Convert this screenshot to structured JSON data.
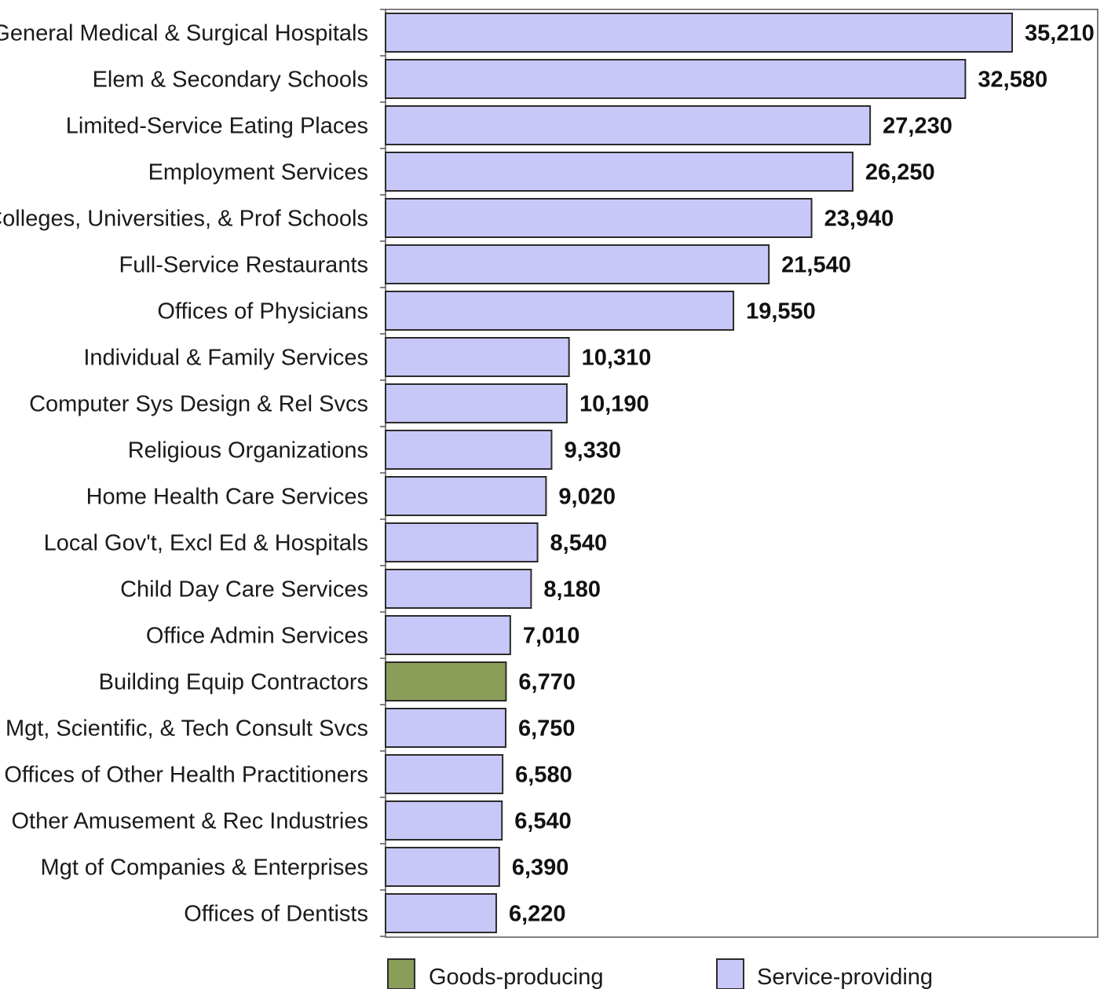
{
  "chart_data": {
    "type": "bar",
    "orientation": "horizontal",
    "categories": [
      "General Medical & Surgical Hospitals",
      "Elem & Secondary Schools",
      "Limited-Service Eating Places",
      "Employment Services",
      "Colleges, Universities, & Prof Schools",
      "Full-Service Restaurants",
      "Offices of Physicians",
      "Individual & Family Services",
      "Computer Sys Design & Rel Svcs",
      "Religious Organizations",
      "Home Health Care Services",
      "Local Gov't, Excl Ed & Hospitals",
      "Child Day Care Services",
      "Office Admin Services",
      "Building Equip Contractors",
      "Mgt, Scientific, & Tech Consult Svcs",
      "Offices of Other Health Practitioners",
      "Other Amusement & Rec Industries",
      "Mgt of Companies & Enterprises",
      "Offices of Dentists"
    ],
    "values": [
      35210,
      32580,
      27230,
      26250,
      23940,
      21540,
      19550,
      10310,
      10190,
      9330,
      9020,
      8540,
      8180,
      7010,
      6770,
      6750,
      6580,
      6540,
      6390,
      6220
    ],
    "value_labels": [
      "35,210",
      "32,580",
      "27,230",
      "26,250",
      "23,940",
      "21,540",
      "19,550",
      "10,310",
      "10,190",
      "9,330",
      "9,020",
      "8,540",
      "8,180",
      "7,010",
      "6,770",
      "6,750",
      "6,580",
      "6,540",
      "6,390",
      "6,220"
    ],
    "sector": [
      "service",
      "service",
      "service",
      "service",
      "service",
      "service",
      "service",
      "service",
      "service",
      "service",
      "service",
      "service",
      "service",
      "service",
      "goods",
      "service",
      "service",
      "service",
      "service",
      "service"
    ],
    "xlim": [
      0,
      40000
    ],
    "grid": false,
    "legend": {
      "placement": "bottom",
      "entries": [
        {
          "key": "goods",
          "label": "Goods-producing",
          "color": "#8a9e5a"
        },
        {
          "key": "service",
          "label": "Service-providing",
          "color": "#c8c8f8"
        }
      ]
    },
    "colors": {
      "bar_border": "#2b2b2b",
      "axis": "#555555"
    }
  }
}
